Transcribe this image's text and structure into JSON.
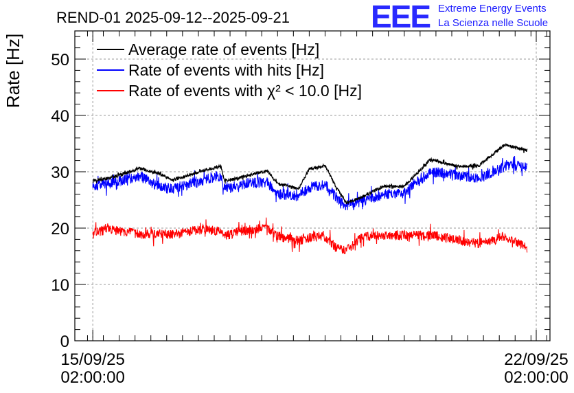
{
  "logo": {
    "letters": "EEE",
    "line1": "Extreme Energy Events",
    "line2": "La Scienza nelle Scuole",
    "color": "#2a2aff"
  },
  "chart_data": {
    "type": "line",
    "title": "REND-01 2025-09-12--2025-09-21",
    "xlabel": "",
    "ylabel": "Rate [Hz]",
    "ylim": [
      0,
      55
    ],
    "xlim_days": [
      14.8,
      22.3
    ],
    "yticks": [
      0,
      10,
      20,
      30,
      40,
      50
    ],
    "xticks": [
      {
        "date": "2025-09-15 02:00:00",
        "line1": "15/09/25",
        "line2": "02:00:00"
      },
      {
        "date": "2025-09-22 02:00:00",
        "line1": "22/09/25",
        "line2": "02:00:00"
      }
    ],
    "grid": true,
    "legend_position": "top-left",
    "series": [
      {
        "name": "Average rate of events [Hz]",
        "color": "#000000",
        "x": [
          "2025-09-15 02:00",
          "2025-09-15 08:00",
          "2025-09-15 20:00",
          "2025-09-16 04:00",
          "2025-09-16 08:00",
          "2025-09-16 20:00",
          "2025-09-17 02:30",
          "2025-09-17 04:00",
          "2025-09-17 10:00",
          "2025-09-17 20:00",
          "2025-09-18 00:00",
          "2025-09-18 08:00",
          "2025-09-18 12:00",
          "2025-09-18 18:00",
          "2025-09-18 22:00",
          "2025-09-19 02:00",
          "2025-09-19 08:00",
          "2025-09-19 16:00",
          "2025-09-20 00:00",
          "2025-09-20 10:00",
          "2025-09-20 20:00",
          "2025-09-21 04:00",
          "2025-09-21 14:00",
          "2025-09-21 22:30"
        ],
        "values": [
          28.5,
          28.8,
          30.6,
          29.5,
          28.5,
          30.2,
          31.0,
          28.3,
          29.0,
          30.2,
          27.9,
          27.0,
          30.5,
          31.0,
          27.5,
          24.5,
          25.5,
          27.4,
          27.4,
          32.2,
          31.0,
          31.0,
          34.8,
          33.8
        ]
      },
      {
        "name": "Rate of events with hits [Hz]",
        "color": "#0000ff",
        "x": [
          "2025-09-15 02:00",
          "2025-09-15 08:00",
          "2025-09-15 20:00",
          "2025-09-16 04:00",
          "2025-09-16 08:00",
          "2025-09-16 20:00",
          "2025-09-17 02:30",
          "2025-09-17 04:00",
          "2025-09-17 10:00",
          "2025-09-17 20:00",
          "2025-09-18 00:00",
          "2025-09-18 08:00",
          "2025-09-18 12:00",
          "2025-09-18 18:00",
          "2025-09-18 22:00",
          "2025-09-19 02:00",
          "2025-09-19 08:00",
          "2025-09-19 16:00",
          "2025-09-20 00:00",
          "2025-09-20 10:00",
          "2025-09-20 20:00",
          "2025-09-21 04:00",
          "2025-09-21 14:00",
          "2025-09-21 22:30"
        ],
        "values": [
          27.5,
          27.9,
          29.2,
          27.2,
          27.0,
          28.6,
          29.4,
          26.8,
          27.8,
          28.2,
          26.0,
          25.8,
          27.2,
          27.8,
          25.5,
          24.0,
          24.8,
          26.0,
          26.2,
          30.0,
          29.5,
          28.8,
          31.0,
          31.0
        ]
      },
      {
        "name": "Rate of events with χ² < 10.0 [Hz]",
        "color": "#ff0000",
        "x": [
          "2025-09-15 02:00",
          "2025-09-15 08:00",
          "2025-09-15 20:00",
          "2025-09-16 04:00",
          "2025-09-16 08:00",
          "2025-09-16 20:00",
          "2025-09-17 02:30",
          "2025-09-17 04:00",
          "2025-09-17 10:00",
          "2025-09-17 20:00",
          "2025-09-18 00:00",
          "2025-09-18 08:00",
          "2025-09-18 12:00",
          "2025-09-18 18:00",
          "2025-09-18 22:00",
          "2025-09-19 02:00",
          "2025-09-19 08:00",
          "2025-09-19 16:00",
          "2025-09-20 00:00",
          "2025-09-20 10:00",
          "2025-09-20 20:00",
          "2025-09-21 04:00",
          "2025-09-21 14:00",
          "2025-09-21 22:30"
        ],
        "values": [
          19.2,
          19.8,
          18.9,
          19.0,
          18.8,
          19.8,
          19.4,
          18.6,
          19.5,
          20.0,
          18.6,
          17.8,
          18.3,
          18.6,
          16.6,
          16.0,
          18.4,
          18.7,
          18.7,
          18.8,
          18.0,
          17.3,
          18.5,
          16.5
        ]
      }
    ]
  }
}
